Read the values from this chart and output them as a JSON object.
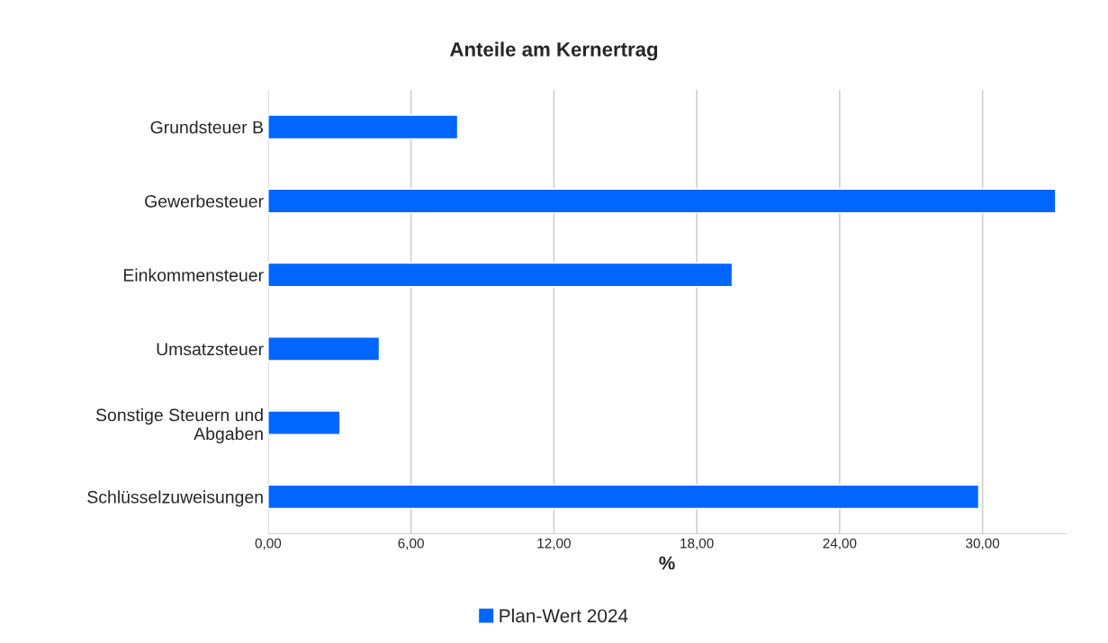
{
  "chart_data": {
    "type": "bar",
    "orientation": "horizontal",
    "title": "Anteile am Kernertrag",
    "xlabel": "%",
    "categories": [
      "Grundsteuer B",
      "Gewerbesteuer",
      "Einkommensteuer",
      "Umsatzsteuer",
      "Sonstige Steuern und\nAbgaben",
      "Schlüsselzuweisungen"
    ],
    "series": [
      {
        "name": "Plan-Wert 2024",
        "color": "#0066ff",
        "values": [
          7.96,
          33.07,
          19.49,
          4.67,
          3.02,
          29.84
        ]
      }
    ],
    "xlim": [
      0,
      33.5
    ],
    "xticks": [
      {
        "value": 0,
        "label": "0,00"
      },
      {
        "value": 6,
        "label": "6,00"
      },
      {
        "value": 12,
        "label": "12,00"
      },
      {
        "value": 18,
        "label": "18,00"
      },
      {
        "value": 24,
        "label": "24,00"
      },
      {
        "value": 30,
        "label": "30,00"
      }
    ],
    "grid": "x",
    "legend": "bottom"
  }
}
